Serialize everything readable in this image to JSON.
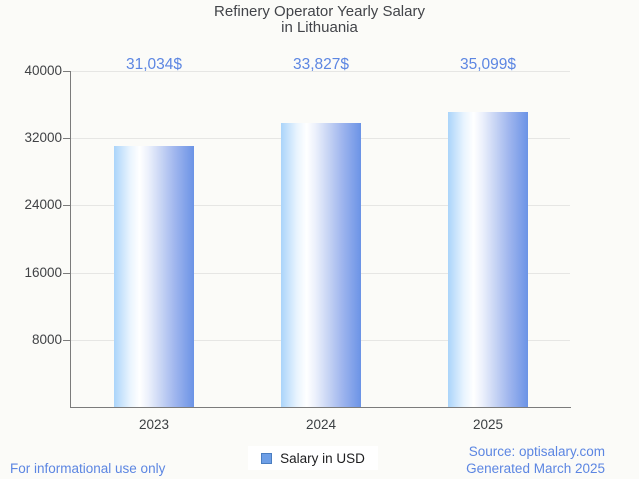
{
  "title": {
    "line1": "Refinery Operator Yearly Salary",
    "line2": "in Lithuania"
  },
  "chart_data": {
    "type": "bar",
    "categories": [
      "2023",
      "2024",
      "2025"
    ],
    "series": [
      {
        "name": "Salary in USD",
        "values": [
          31034,
          33827,
          35099
        ]
      }
    ],
    "value_labels": [
      "31,034$",
      "33,827$",
      "35,099$"
    ],
    "y_ticks": [
      8000,
      16000,
      24000,
      32000,
      40000
    ],
    "ylim": [
      0,
      40000
    ],
    "xlabel": "",
    "ylabel": "",
    "grid": true,
    "legend_position": "bottom-center",
    "title": "Refinery Operator Yearly Salary in Lithuania"
  },
  "legend": {
    "label": "Salary in USD"
  },
  "footer": {
    "disclaimer": "For informational use only",
    "source": "Source: optisalary.com",
    "generated": "Generated March 2025"
  },
  "colors": {
    "accent_blue": "#5c86e2",
    "bar_gradient_left": "#aad4fa",
    "bar_gradient_mid": "#ffffff",
    "bar_gradient_right": "#6b93e6",
    "legend_swatch_fill": "#6d9ee6",
    "legend_swatch_border": "#4b7ec1",
    "background": "#fbfbf8",
    "gridline": "#e6e6e4",
    "axis": "#7b7b7b",
    "title_text": "#424449"
  }
}
